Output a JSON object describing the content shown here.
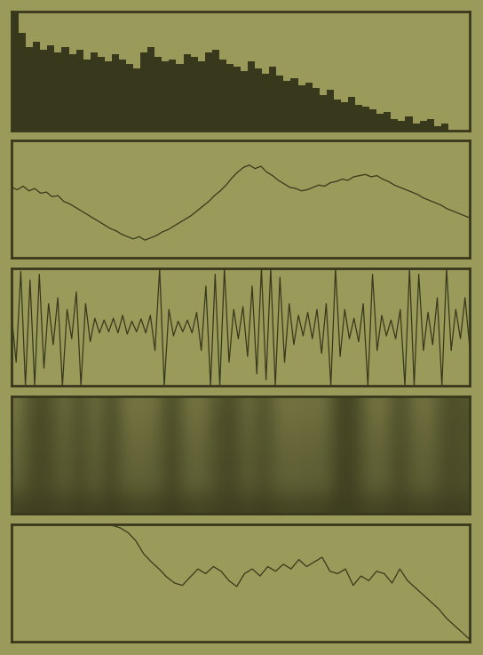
{
  "chart_data": [
    {
      "type": "bar",
      "color": "#38381c",
      "tick_labels": false,
      "xlim": [
        -0.5,
        63.5
      ],
      "ylim": [
        0,
        100
      ],
      "values": [
        100,
        82,
        70,
        75,
        68,
        72,
        66,
        70,
        64,
        68,
        60,
        66,
        62,
        58,
        64,
        60,
        56,
        52,
        66,
        70,
        62,
        58,
        60,
        56,
        64,
        62,
        58,
        66,
        68,
        60,
        56,
        54,
        50,
        58,
        52,
        48,
        54,
        46,
        42,
        44,
        38,
        40,
        36,
        30,
        34,
        26,
        24,
        28,
        22,
        20,
        18,
        14,
        16,
        10,
        8,
        12,
        6,
        8,
        10,
        4,
        6,
        0,
        0,
        0
      ]
    },
    {
      "type": "line",
      "color": "#38381c",
      "tick_labels": false,
      "xlim": [
        0,
        79
      ],
      "ylim": [
        0,
        100
      ],
      "values": [
        60,
        58,
        61,
        57,
        59,
        55,
        56,
        52,
        53,
        48,
        46,
        43,
        40,
        37,
        34,
        31,
        28,
        25,
        23,
        20,
        18,
        16,
        18,
        15,
        17,
        19,
        22,
        24,
        27,
        30,
        33,
        36,
        40,
        44,
        48,
        53,
        57,
        62,
        68,
        73,
        77,
        79,
        76,
        78,
        73,
        70,
        66,
        63,
        60,
        59,
        57,
        58,
        60,
        62,
        61,
        64,
        65,
        67,
        66,
        69,
        70,
        71,
        69,
        70,
        67,
        65,
        62,
        60,
        58,
        56,
        54,
        51,
        49,
        47,
        45,
        42,
        40,
        38,
        36,
        34
      ]
    },
    {
      "type": "line",
      "color": "#38381c",
      "tick_labels": false,
      "xlim": [
        0,
        99
      ],
      "ylim": [
        -100,
        100
      ],
      "values": [
        20,
        -60,
        95,
        -100,
        80,
        -100,
        90,
        -70,
        40,
        -30,
        50,
        -100,
        30,
        -20,
        60,
        -100,
        40,
        -25,
        15,
        -10,
        12,
        -8,
        15,
        -10,
        20,
        -12,
        10,
        -8,
        14,
        -10,
        20,
        -40,
        100,
        -100,
        30,
        -15,
        10,
        -8,
        12,
        -10,
        25,
        -40,
        70,
        -100,
        90,
        -100,
        100,
        -60,
        30,
        -20,
        35,
        -50,
        70,
        -80,
        100,
        -90,
        100,
        -100,
        85,
        -60,
        40,
        -30,
        20,
        -15,
        25,
        -20,
        30,
        -45,
        40,
        -100,
        100,
        -50,
        30,
        -20,
        15,
        -25,
        40,
        -100,
        90,
        -40,
        20,
        -15,
        12,
        -20,
        30,
        -100,
        100,
        -100,
        90,
        -40,
        25,
        -30,
        50,
        -100,
        100,
        -40,
        30,
        -20,
        50,
        -35
      ]
    },
    {
      "type": "heatmap",
      "color": "#38381c",
      "tick_labels": false,
      "value_range": [
        0,
        100
      ],
      "cells": [
        [
          40,
          80,
          75,
          45,
          78,
          42,
          82,
          40,
          38,
          44,
          85,
          42,
          40,
          70,
          80,
          44,
          76,
          42,
          40,
          45,
          42,
          88,
          84,
          40,
          44,
          80,
          42,
          45,
          78,
          72
        ],
        [
          45,
          85,
          80,
          50,
          82,
          48,
          86,
          46,
          44,
          50,
          88,
          48,
          46,
          78,
          84,
          50,
          80,
          48,
          46,
          50,
          48,
          90,
          86,
          46,
          50,
          84,
          48,
          50,
          82,
          76
        ],
        [
          50,
          82,
          78,
          55,
          80,
          52,
          84,
          52,
          50,
          55,
          86,
          54,
          52,
          75,
          82,
          56,
          78,
          54,
          52,
          55,
          54,
          88,
          84,
          52,
          56,
          82,
          54,
          55,
          80,
          74
        ],
        [
          55,
          86,
          82,
          60,
          84,
          58,
          88,
          56,
          55,
          60,
          90,
          58,
          56,
          80,
          86,
          60,
          82,
          58,
          56,
          60,
          58,
          92,
          88,
          56,
          60,
          86,
          58,
          60,
          84,
          78
        ],
        [
          60,
          84,
          80,
          62,
          82,
          60,
          86,
          60,
          58,
          62,
          88,
          60,
          58,
          78,
          84,
          62,
          80,
          60,
          58,
          62,
          60,
          90,
          86,
          58,
          62,
          84,
          60,
          62,
          82,
          76
        ],
        [
          88,
          92,
          90,
          88,
          92,
          88,
          94,
          88,
          86,
          88,
          94,
          88,
          86,
          90,
          92,
          88,
          92,
          88,
          86,
          88,
          88,
          95,
          92,
          86,
          88,
          92,
          88,
          88,
          92,
          90
        ]
      ]
    },
    {
      "type": "line",
      "color": "#38381c",
      "tick_labels": false,
      "xlim": [
        0,
        59
      ],
      "ylim": [
        0,
        100
      ],
      "values": [
        100,
        100,
        100,
        100,
        100,
        100,
        100,
        100,
        100,
        100,
        100,
        100,
        100,
        99,
        97,
        93,
        86,
        75,
        68,
        62,
        55,
        50,
        48,
        55,
        62,
        58,
        64,
        60,
        52,
        47,
        58,
        62,
        56,
        64,
        60,
        66,
        62,
        70,
        64,
        68,
        72,
        60,
        58,
        62,
        48,
        56,
        52,
        60,
        58,
        50,
        62,
        52,
        46,
        40,
        34,
        28,
        20,
        14,
        8,
        2
      ]
    }
  ]
}
